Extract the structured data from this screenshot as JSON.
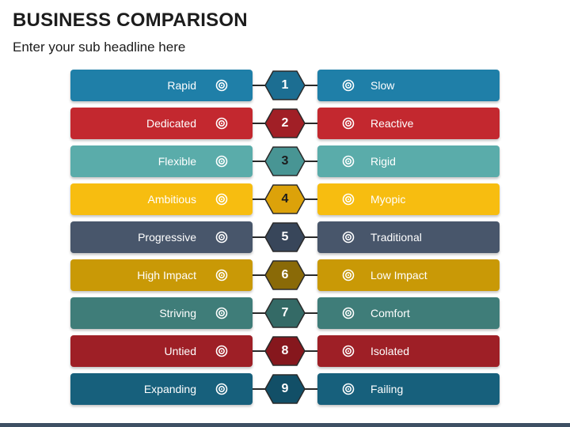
{
  "header": {
    "title": "BUSINESS COMPARISON",
    "subtitle": "Enter your sub headline here"
  },
  "rows": [
    {
      "number": "1",
      "left": "Rapid",
      "right": "Slow",
      "color": "#1f7fa8",
      "hex_color": "#1c6e92",
      "num_color": "#ffffff"
    },
    {
      "number": "2",
      "left": "Dedicated",
      "right": "Reactive",
      "color": "#c3282f",
      "hex_color": "#a11f26",
      "num_color": "#ffffff"
    },
    {
      "number": "3",
      "left": "Flexible",
      "right": "Rigid",
      "color": "#5aacaa",
      "hex_color": "#489594",
      "num_color": "#1c1c1c"
    },
    {
      "number": "4",
      "left": "Ambitious",
      "right": "Myopic",
      "color": "#f7bd10",
      "hex_color": "#dca20a",
      "num_color": "#1c1c1c"
    },
    {
      "number": "5",
      "left": "Progressive",
      "right": "Traditional",
      "color": "#48566b",
      "hex_color": "#38465a",
      "num_color": "#ffffff"
    },
    {
      "number": "6",
      "left": "High Impact",
      "right": "Low Impact",
      "color": "#c99906",
      "hex_color": "#8a6a07",
      "num_color": "#ffffff"
    },
    {
      "number": "7",
      "left": "Striving",
      "right": "Comfort",
      "color": "#3f7d79",
      "hex_color": "#346a66",
      "num_color": "#ffffff"
    },
    {
      "number": "8",
      "left": "Untied",
      "right": "Isolated",
      "color": "#9e1f26",
      "hex_color": "#86171d",
      "num_color": "#ffffff"
    },
    {
      "number": "9",
      "left": "Expanding",
      "right": "Failing",
      "color": "#17607c",
      "hex_color": "#124f67",
      "num_color": "#ffffff"
    }
  ],
  "icons": {
    "bar_icon": "target-icon"
  }
}
